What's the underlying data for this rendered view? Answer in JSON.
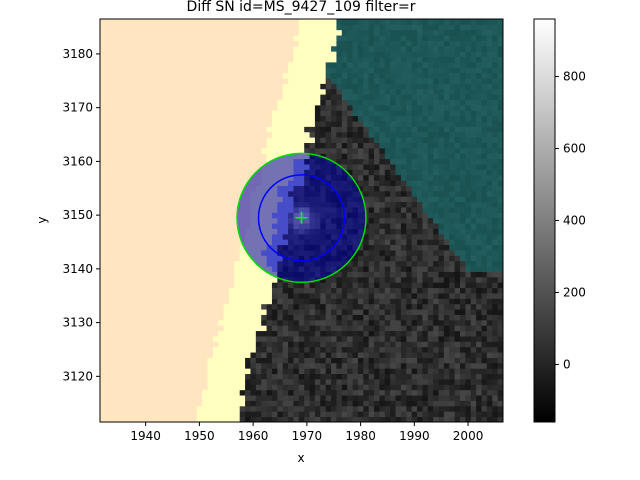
{
  "chart_data": {
    "type": "heatmap",
    "title": "Diff SN id=MS_9427_109 filter=r",
    "xlabel": "x",
    "ylabel": "y",
    "xlim": [
      1931.5,
      2006.5
    ],
    "ylim": [
      3111.5,
      3186.5
    ],
    "x_ticks": [
      1940,
      1950,
      1960,
      1970,
      1980,
      1990,
      2000
    ],
    "y_ticks": [
      3120,
      3130,
      3140,
      3150,
      3160,
      3170,
      3180
    ],
    "colorbar": {
      "cmap": "gray",
      "range": [
        -160,
        960
      ],
      "ticks": [
        0,
        200,
        400,
        600,
        800
      ]
    },
    "regions": [
      {
        "name": "masked-edge",
        "color": "#ffe6c0"
      },
      {
        "name": "masked-bright-band",
        "color": "#ffffc0"
      },
      {
        "name": "masked-cyan-region",
        "color": "#1d5a5a"
      },
      {
        "name": "masked-blue-pixels",
        "color": "#9ea8f0"
      }
    ],
    "overlays": {
      "marker": {
        "x": 1969,
        "y": 3149.5,
        "shape": "+",
        "color": "#00ff00"
      },
      "circles": [
        {
          "cx": 1969,
          "cy": 3149.5,
          "r": 8,
          "color": "#0000ff"
        },
        {
          "cx": 1969,
          "cy": 3149.5,
          "r": 12,
          "color": "#00dd00"
        }
      ],
      "shaded_disk": {
        "cx": 1969,
        "cy": 3149.5,
        "r": 12,
        "color": "#0000aa",
        "alpha": 0.55
      }
    }
  }
}
